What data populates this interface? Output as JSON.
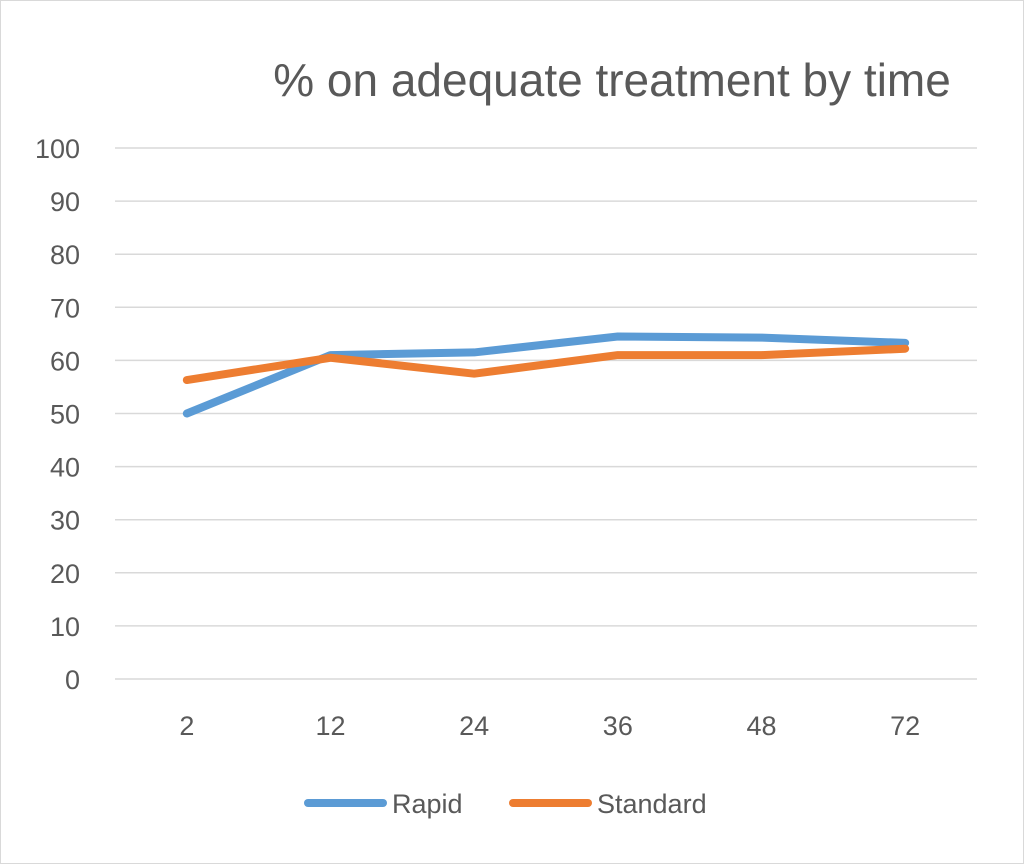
{
  "chart_data": {
    "type": "line",
    "title": "% on adequate treatment by time",
    "categories": [
      "2",
      "12",
      "24",
      "36",
      "48",
      "72"
    ],
    "series": [
      {
        "name": "Rapid",
        "values": [
          50,
          61,
          61.5,
          64.5,
          64.3,
          63.3
        ],
        "color": "#5b9bd5"
      },
      {
        "name": "Standard",
        "values": [
          56.3,
          60.5,
          57.5,
          61,
          61,
          62.2
        ],
        "color": "#ed7d31"
      }
    ],
    "ylim": [
      0,
      100
    ],
    "yticks": [
      0,
      10,
      20,
      30,
      40,
      50,
      60,
      70,
      80,
      90,
      100
    ],
    "grid": true,
    "legend_position": "bottom"
  }
}
